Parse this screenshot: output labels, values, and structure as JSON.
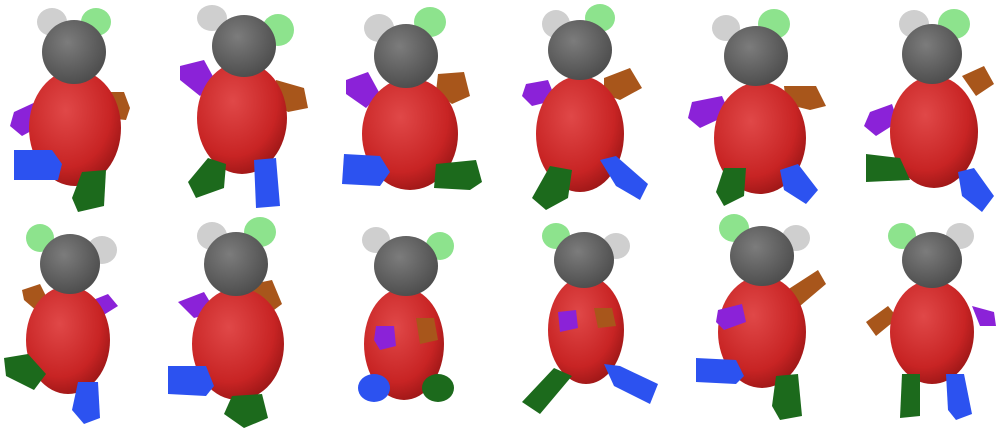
{
  "figure": {
    "grid": {
      "rows": 2,
      "columns": 6
    },
    "part_colors": {
      "head": "#5f5f5f",
      "body": "#cc2a2a",
      "ear_white": "#cfcfcf",
      "ear_green": "#8de38d",
      "arm_purple": "#8b22d8",
      "arm_orange": "#a8561b",
      "leg_blue": "#2c52f0",
      "leg_green": "#1c6a1c"
    },
    "panels": [
      {
        "id": "r1c1"
      },
      {
        "id": "r1c2"
      },
      {
        "id": "r1c3"
      },
      {
        "id": "r1c4"
      },
      {
        "id": "r1c5"
      },
      {
        "id": "r1c6"
      },
      {
        "id": "r2c1"
      },
      {
        "id": "r2c2"
      },
      {
        "id": "r2c3"
      },
      {
        "id": "r2c4"
      },
      {
        "id": "r2c5"
      },
      {
        "id": "r2c6"
      }
    ]
  }
}
